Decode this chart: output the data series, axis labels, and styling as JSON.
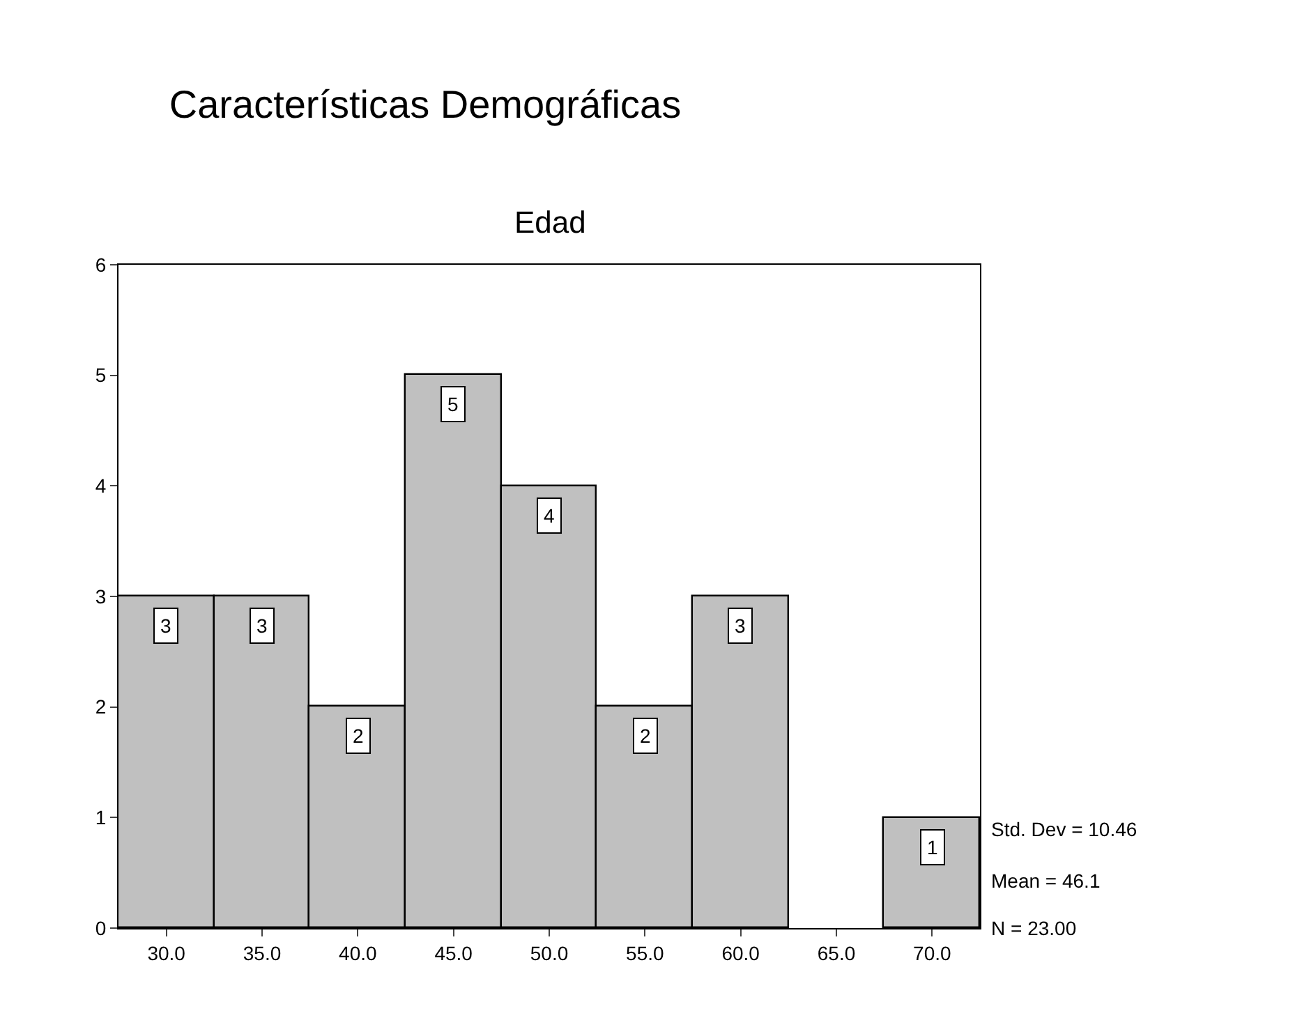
{
  "chart_data": {
    "type": "histogram",
    "title": "Características Demográficas",
    "subtitle": "Edad",
    "bins": [
      27.5,
      32.5,
      37.5,
      42.5,
      47.5,
      52.5,
      57.5,
      62.5,
      67.5,
      72.5
    ],
    "values": [
      3,
      3,
      2,
      5,
      4,
      2,
      3,
      0,
      1
    ],
    "value_labels": [
      "3",
      "3",
      "2",
      "5",
      "4",
      "2",
      "3",
      null,
      "1"
    ],
    "color": "#c0c0c0",
    "xlim": [
      27.5,
      72.5
    ],
    "xticks": [
      {
        "value": 30,
        "label": "30.0"
      },
      {
        "value": 35,
        "label": "35.0"
      },
      {
        "value": 40,
        "label": "40.0"
      },
      {
        "value": 45,
        "label": "45.0"
      },
      {
        "value": 50,
        "label": "50.0"
      },
      {
        "value": 55,
        "label": "55.0"
      },
      {
        "value": 60,
        "label": "60.0"
      },
      {
        "value": 65,
        "label": "65.0"
      },
      {
        "value": 70,
        "label": "70.0"
      }
    ],
    "ylim": [
      0,
      6
    ],
    "yticks": [
      0,
      1,
      2,
      3,
      4,
      5,
      6
    ],
    "grid": false,
    "legend": false,
    "annotations": [
      "Std. Dev = 10.46",
      "Mean = 46.1",
      "N = 23.00"
    ]
  }
}
